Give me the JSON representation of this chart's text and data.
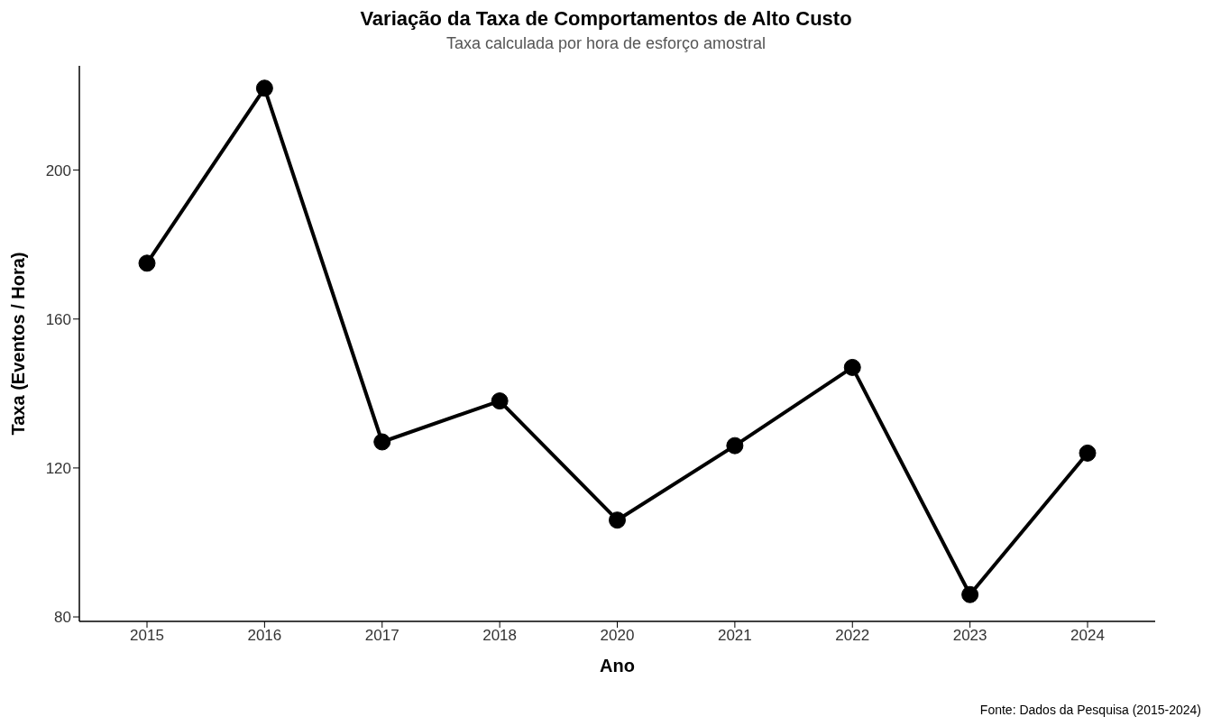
{
  "chart_data": {
    "type": "line",
    "title": "Variação da Taxa de Comportamentos de Alto Custo",
    "subtitle": "Taxa calculada por hora de esforço amostral",
    "xlabel": "Ano",
    "ylabel": "Taxa (Eventos / Hora)",
    "annotations": [
      "Fonte: Dados da Pesquisa (2015-2024)"
    ],
    "categories": [
      "2015",
      "2016",
      "2017",
      "2018",
      "2020",
      "2021",
      "2022",
      "2023",
      "2024"
    ],
    "series": [
      {
        "color": "#000000",
        "values": [
          175,
          222,
          127,
          138,
          106,
          126,
          147,
          86,
          124
        ]
      }
    ],
    "ylim": [
      78.8,
      228
    ],
    "yticks": [
      80,
      120,
      160,
      200
    ],
    "marker": "circle",
    "line_style": "solid"
  }
}
